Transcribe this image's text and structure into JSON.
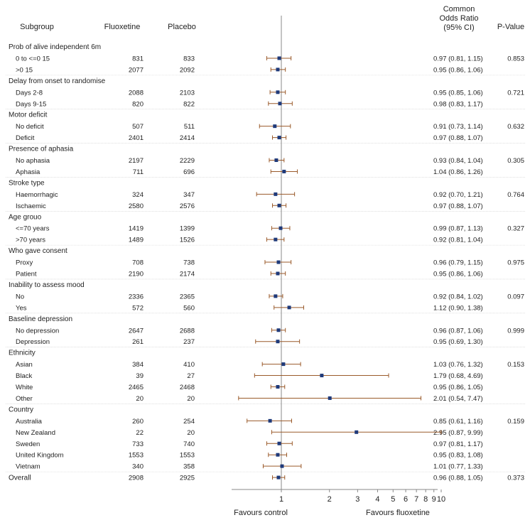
{
  "headers": {
    "subgroup": "Subgroup",
    "fluoxetine": "Fluoxetine",
    "placebo": "Placebo",
    "or_line1": "Common",
    "or_line2": "Odds Ratio",
    "or_line3": "(95% CI)",
    "pvalue": "P-Value"
  },
  "footer": {
    "favours_control": "Favours control",
    "favours_fluoxetine": "Favours fluoxetine"
  },
  "colors": {
    "marker": "#1f3a7a",
    "ci_line": "#9a5a2a",
    "axis": "#888888",
    "separator": "#cccccc"
  },
  "chart_data": {
    "type": "forest",
    "x_scale": "log",
    "xlim": [
      0.5,
      10
    ],
    "reference_line": 1,
    "x_ticks": [
      1,
      2,
      3,
      4,
      5,
      6,
      7,
      8,
      9,
      10
    ],
    "rows": [
      {
        "kind": "group",
        "label": "Prob of alive independent 6m"
      },
      {
        "kind": "row",
        "label": "0 to <=0 15",
        "fluoxetine": "831",
        "placebo": "833",
        "or": 0.97,
        "lo": 0.81,
        "hi": 1.15,
        "ci_text": "0.97 (0.81, 1.15)",
        "p": "0.853"
      },
      {
        "kind": "row",
        "label": ">0 15",
        "fluoxetine": "2077",
        "placebo": "2092",
        "or": 0.95,
        "lo": 0.86,
        "hi": 1.06,
        "ci_text": "0.95 (0.86, 1.06)",
        "p": ""
      },
      {
        "kind": "group",
        "label": "Delay from onset to randomise"
      },
      {
        "kind": "row",
        "label": "Days 2-8",
        "fluoxetine": "2088",
        "placebo": "2103",
        "or": 0.95,
        "lo": 0.85,
        "hi": 1.06,
        "ci_text": "0.95 (0.85, 1.06)",
        "p": "0.721"
      },
      {
        "kind": "row",
        "label": "Days 9-15",
        "fluoxetine": "820",
        "placebo": "822",
        "or": 0.98,
        "lo": 0.83,
        "hi": 1.17,
        "ci_text": "0.98 (0.83, 1.17)",
        "p": ""
      },
      {
        "kind": "group",
        "label": "Motor deficit"
      },
      {
        "kind": "row",
        "label": "No deficit",
        "fluoxetine": "507",
        "placebo": "511",
        "or": 0.91,
        "lo": 0.73,
        "hi": 1.14,
        "ci_text": "0.91 (0.73, 1.14)",
        "p": "0.632"
      },
      {
        "kind": "row",
        "label": "Deficit",
        "fluoxetine": "2401",
        "placebo": "2414",
        "or": 0.97,
        "lo": 0.88,
        "hi": 1.07,
        "ci_text": "0.97 (0.88, 1.07)",
        "p": ""
      },
      {
        "kind": "group",
        "label": "Presence of aphasia"
      },
      {
        "kind": "row",
        "label": "No aphasia",
        "fluoxetine": "2197",
        "placebo": "2229",
        "or": 0.93,
        "lo": 0.84,
        "hi": 1.04,
        "ci_text": "0.93 (0.84, 1.04)",
        "p": "0.305"
      },
      {
        "kind": "row",
        "label": "Aphasia",
        "fluoxetine": "711",
        "placebo": "696",
        "or": 1.04,
        "lo": 0.86,
        "hi": 1.26,
        "ci_text": "1.04 (0.86, 1.26)",
        "p": ""
      },
      {
        "kind": "group",
        "label": "Stroke type"
      },
      {
        "kind": "row",
        "label": "Haemorrhagic",
        "fluoxetine": "324",
        "placebo": "347",
        "or": 0.92,
        "lo": 0.7,
        "hi": 1.21,
        "ci_text": "0.92 (0.70, 1.21)",
        "p": "0.764"
      },
      {
        "kind": "row",
        "label": "Ischaemic",
        "fluoxetine": "2580",
        "placebo": "2576",
        "or": 0.97,
        "lo": 0.88,
        "hi": 1.07,
        "ci_text": "0.97 (0.88, 1.07)",
        "p": ""
      },
      {
        "kind": "group",
        "label": "Age grouo"
      },
      {
        "kind": "row",
        "label": "<=70 years",
        "fluoxetine": "1419",
        "placebo": "1399",
        "or": 0.99,
        "lo": 0.87,
        "hi": 1.13,
        "ci_text": "0.99 (0.87, 1.13)",
        "p": "0.327"
      },
      {
        "kind": "row",
        "label": ">70 years",
        "fluoxetine": "1489",
        "placebo": "1526",
        "or": 0.92,
        "lo": 0.81,
        "hi": 1.04,
        "ci_text": "0.92 (0.81, 1.04)",
        "p": ""
      },
      {
        "kind": "group",
        "label": "Who gave consent"
      },
      {
        "kind": "row",
        "label": "Proxy",
        "fluoxetine": "708",
        "placebo": "738",
        "or": 0.96,
        "lo": 0.79,
        "hi": 1.15,
        "ci_text": "0.96 (0.79, 1.15)",
        "p": "0.975"
      },
      {
        "kind": "row",
        "label": "Patient",
        "fluoxetine": "2190",
        "placebo": "2174",
        "or": 0.95,
        "lo": 0.86,
        "hi": 1.06,
        "ci_text": "0.95 (0.86, 1.06)",
        "p": ""
      },
      {
        "kind": "group",
        "label": "Inability to assess mood"
      },
      {
        "kind": "row",
        "label": "No",
        "fluoxetine": "2336",
        "placebo": "2365",
        "or": 0.92,
        "lo": 0.84,
        "hi": 1.02,
        "ci_text": "0.92 (0.84, 1.02)",
        "p": "0.097"
      },
      {
        "kind": "row",
        "label": "Yes",
        "fluoxetine": "572",
        "placebo": "560",
        "or": 1.12,
        "lo": 0.9,
        "hi": 1.38,
        "ci_text": "1.12 (0.90, 1.38)",
        "p": ""
      },
      {
        "kind": "group",
        "label": "Baseline depression"
      },
      {
        "kind": "row",
        "label": "No depression",
        "fluoxetine": "2647",
        "placebo": "2688",
        "or": 0.96,
        "lo": 0.87,
        "hi": 1.06,
        "ci_text": "0.96 (0.87, 1.06)",
        "p": "0.999"
      },
      {
        "kind": "row",
        "label": "Depression",
        "fluoxetine": "261",
        "placebo": "237",
        "or": 0.95,
        "lo": 0.69,
        "hi": 1.3,
        "ci_text": "0.95 (0.69, 1.30)",
        "p": ""
      },
      {
        "kind": "group",
        "label": "Ethnicity"
      },
      {
        "kind": "row",
        "label": "Asian",
        "fluoxetine": "384",
        "placebo": "410",
        "or": 1.03,
        "lo": 0.76,
        "hi": 1.32,
        "ci_text": "1.03 (0.76, 1.32)",
        "p": "0.153"
      },
      {
        "kind": "row",
        "label": "Black",
        "fluoxetine": "39",
        "placebo": "27",
        "or": 1.79,
        "lo": 0.68,
        "hi": 4.69,
        "ci_text": "1.79 (0.68, 4.69)",
        "p": ""
      },
      {
        "kind": "row",
        "label": "White",
        "fluoxetine": "2465",
        "placebo": "2468",
        "or": 0.95,
        "lo": 0.86,
        "hi": 1.05,
        "ci_text": "0.95 (0.86, 1.05)",
        "p": ""
      },
      {
        "kind": "row",
        "label": "Other",
        "fluoxetine": "20",
        "placebo": "20",
        "or": 2.01,
        "lo": 0.54,
        "hi": 7.47,
        "ci_text": "2.01 (0.54, 7.47)",
        "p": ""
      },
      {
        "kind": "group",
        "label": "Country"
      },
      {
        "kind": "row",
        "label": "Australia",
        "fluoxetine": "260",
        "placebo": "254",
        "or": 0.85,
        "lo": 0.61,
        "hi": 1.16,
        "ci_text": "0.85 (0.61, 1.16)",
        "p": "0.159"
      },
      {
        "kind": "row",
        "label": "New Zealand",
        "fluoxetine": "22",
        "placebo": "20",
        "or": 2.95,
        "lo": 0.87,
        "hi": 9.99,
        "ci_text": "2.95 (0.87, 9.99)",
        "p": ""
      },
      {
        "kind": "row",
        "label": "Sweden",
        "fluoxetine": "733",
        "placebo": "740",
        "or": 0.97,
        "lo": 0.81,
        "hi": 1.17,
        "ci_text": "0.97 (0.81, 1.17)",
        "p": ""
      },
      {
        "kind": "row",
        "label": "United Kingdom",
        "fluoxetine": "1553",
        "placebo": "1553",
        "or": 0.95,
        "lo": 0.83,
        "hi": 1.08,
        "ci_text": "0.95 (0.83, 1.08)",
        "p": ""
      },
      {
        "kind": "row",
        "label": "Vietnam",
        "fluoxetine": "340",
        "placebo": "358",
        "or": 1.01,
        "lo": 0.77,
        "hi": 1.33,
        "ci_text": "1.01 (0.77, 1.33)",
        "p": ""
      },
      {
        "kind": "overall",
        "label": "Overall",
        "fluoxetine": "2908",
        "placebo": "2925",
        "or": 0.96,
        "lo": 0.88,
        "hi": 1.05,
        "ci_text": "0.96 (0.88, 1.05)",
        "p": "0.373"
      }
    ]
  }
}
